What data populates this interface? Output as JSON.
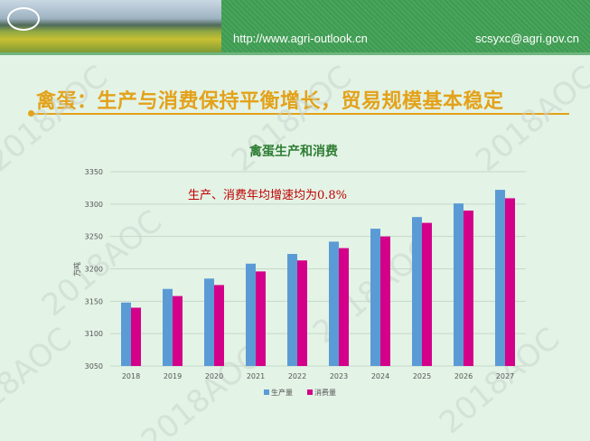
{
  "header": {
    "logo_text": "AOC",
    "url": "http://www.agri-outlook.cn",
    "email": "scsyxc@agri.gov.cn"
  },
  "slide_title": "禽蛋：生产与消费保持平衡增长，贸易规模基本稳定",
  "watermark": "2018AOC",
  "colors": {
    "production": "#5b9bd5",
    "consumption": "#d4008a",
    "title": "#e3a21a",
    "chart_title": "#2e7d32",
    "annotation": "#c00000"
  },
  "chart_data": {
    "type": "bar",
    "title": "禽蛋生产和消费",
    "annotation": "生产、消费年均增速均为0.8%",
    "ylabel": "万吨",
    "xlabel": "",
    "ylim": [
      3050,
      3350
    ],
    "yticks": [
      3050,
      3100,
      3150,
      3200,
      3250,
      3300,
      3350
    ],
    "grid": true,
    "legend_placement": "bottom",
    "categories": [
      "2018",
      "2019",
      "2020",
      "2021",
      "2022",
      "2023",
      "2024",
      "2025",
      "2026",
      "2027"
    ],
    "series": [
      {
        "name": "生产量",
        "color": "#5b9bd5",
        "values": [
          3148,
          3169,
          3185,
          3208,
          3223,
          3242,
          3262,
          3280,
          3301,
          3322
        ]
      },
      {
        "name": "消费量",
        "color": "#d4008a",
        "values": [
          3140,
          3158,
          3175,
          3196,
          3213,
          3232,
          3250,
          3271,
          3290,
          3309
        ]
      }
    ]
  }
}
